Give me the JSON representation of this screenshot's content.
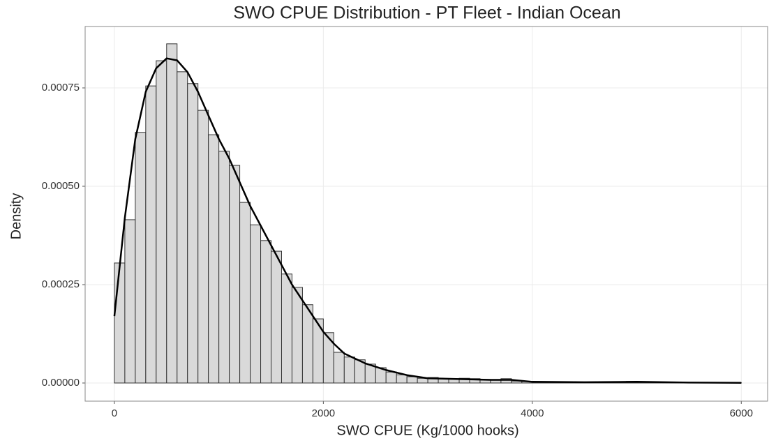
{
  "chart_data": {
    "type": "histogram",
    "title": "SWO CPUE Distribution - PT Fleet - Indian Ocean",
    "x_label": "SWO CPUE (Kg/1000 hooks)",
    "y_label": "Density",
    "bins": [
      0,
      100,
      200,
      300,
      400,
      500,
      600,
      700,
      800,
      900,
      1000,
      1100,
      1200,
      1300,
      1400,
      1500,
      1600,
      1700,
      1800,
      1900,
      2000,
      2100,
      2200,
      2300,
      2400,
      2500,
      2600,
      2700,
      2800,
      2900,
      3000,
      3100,
      3200,
      3300,
      3400,
      3500,
      3600,
      3700,
      3800,
      3900,
      4000,
      4100,
      4200,
      4300,
      4400,
      4500,
      4600,
      4700,
      4800,
      4900,
      5000,
      5100,
      5200,
      5300,
      5400,
      5500,
      5600,
      5700,
      5800,
      5900,
      6000
    ],
    "values": [
      0.000305,
      0.000415,
      0.000637,
      0.000755,
      0.000819,
      0.000862,
      0.000791,
      0.000761,
      0.000693,
      0.000631,
      0.000589,
      0.000553,
      0.000459,
      0.000402,
      0.000362,
      0.000335,
      0.000277,
      0.000243,
      0.000199,
      0.000163,
      0.000128,
      7.8e-05,
      6.6e-05,
      5.9e-05,
      4.8e-05,
      3.9e-05,
      2.8e-05,
      2.1e-05,
      1.6e-05,
      1.2e-05,
      1.4e-05,
      1.1e-05,
      1.1e-05,
      1.2e-05,
      1.1e-05,
      9e-06,
      7e-06,
      1.1e-05,
      5e-06,
      4e-06,
      2e-06,
      2e-06,
      2e-06,
      2e-06,
      2e-06,
      2e-06,
      2e-06,
      2e-06,
      2e-06,
      4e-06,
      2e-06,
      2e-06,
      1e-06,
      1e-06,
      1e-06,
      1e-06,
      1e-06,
      1e-06,
      1e-06,
      1e-06
    ],
    "color": "#d9d9d9",
    "line": {
      "x": [
        0,
        100,
        200,
        300,
        400,
        500,
        600,
        700,
        800,
        900,
        1000,
        1100,
        1200,
        1300,
        1400,
        1500,
        1600,
        1700,
        1800,
        1900,
        2000,
        2100,
        2200,
        2400,
        2600,
        2800,
        3000,
        3300,
        3600,
        3800,
        4000,
        4500,
        5000,
        5500,
        6000
      ],
      "values": [
        0.00017,
        0.00042,
        0.00062,
        0.00074,
        0.0008,
        0.000825,
        0.00082,
        0.00079,
        0.00074,
        0.00068,
        0.00062,
        0.00057,
        0.00051,
        0.00045,
        0.0004,
        0.00035,
        0.0003,
        0.00025,
        0.00021,
        0.00017,
        0.00013,
        0.0001,
        7.5e-05,
        5e-05,
        3.3e-05,
        2e-05,
        1.2e-05,
        1e-05,
        8e-06,
        8e-06,
        3e-06,
        2e-06,
        3e-06,
        1e-06,
        5e-07
      ],
      "color": "#000000"
    },
    "xlim": [
      -280,
      6252
    ],
    "ylim": [
      -4.61e-05,
      0.000906
    ],
    "xticks": [
      0,
      2000,
      4000,
      6000
    ],
    "yticks": [
      {
        "value": 0,
        "label": "0.00000"
      },
      {
        "value": 0.00025,
        "label": "0.00025"
      },
      {
        "value": 0.0005,
        "label": "0.00050"
      },
      {
        "value": 0.00075,
        "label": "0.00075"
      }
    ],
    "grid": true
  }
}
